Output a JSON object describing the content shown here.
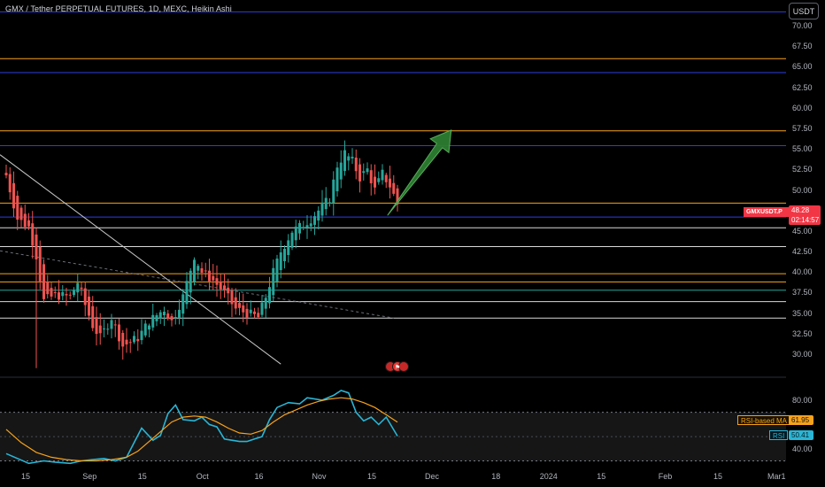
{
  "header": {
    "title": "GMX / Tether PERPETUAL FUTURES, 1D, MEXC, Heikin Ashi",
    "currency": "USDT"
  },
  "price_axis": {
    "ticks": [
      "70.00",
      "67.50",
      "65.00",
      "62.50",
      "60.00",
      "57.50",
      "55.00",
      "52.50",
      "50.00",
      "47.50",
      "45.00",
      "42.50",
      "40.00",
      "37.50",
      "35.00",
      "32.50",
      "30.00"
    ]
  },
  "rsi_axis": {
    "ticks": [
      "80.00",
      "40.00"
    ]
  },
  "time_axis": {
    "ticks": [
      {
        "label": "15",
        "day": 0
      },
      {
        "label": "Sep",
        "day": 17
      },
      {
        "label": "15",
        "day": 31
      },
      {
        "label": "Oct",
        "day": 47
      },
      {
        "label": "16",
        "day": 62
      },
      {
        "label": "Nov",
        "day": 78
      },
      {
        "label": "15",
        "day": 92
      },
      {
        "label": "Dec",
        "day": 108
      },
      {
        "label": "18",
        "day": 125
      },
      {
        "label": "2024",
        "day": 139
      },
      {
        "label": "15",
        "day": 153
      },
      {
        "label": "Feb",
        "day": 170
      },
      {
        "label": "15",
        "day": 184
      },
      {
        "label": "Mar",
        "day": 199
      },
      {
        "label": "1",
        "day": 214
      }
    ]
  },
  "badges": {
    "symbol": "GMXUSDT.P",
    "last_price": "48.28",
    "countdown": "02:14:57",
    "rsi_ma_label": "RSI-based MA",
    "rsi_ma_value": "61.95",
    "rsi_label": "RSI",
    "rsi_value": "50.41"
  },
  "colors": {
    "bull": "#26a69a",
    "bear": "#ef5350",
    "orange_level": "#f7a21b",
    "blue_level": "#2e3ee0",
    "white_level": "#d9d9d9",
    "teal_level": "#26a69a",
    "rsi_line": "#29b6d6",
    "rsi_ma_line": "#f7a21b",
    "arrow": "#2e7d32"
  },
  "chart_data": [
    {
      "type": "candlestick",
      "title": "GMX / Tether PERPETUAL FUTURES, 1D, MEXC, Heikin Ashi",
      "y_axis": "price (USDT)",
      "ylim": [
        27.2,
        72.6
      ],
      "x_axis": "days since Aug 15",
      "grid": false,
      "horizontal_levels": [
        {
          "price": 71.7,
          "color": "blue"
        },
        {
          "price": 66.0,
          "color": "orange"
        },
        {
          "price": 64.3,
          "color": "blue"
        },
        {
          "price": 57.2,
          "color": "orange"
        },
        {
          "price": 55.4,
          "color": "blue"
        },
        {
          "price": 48.4,
          "color": "orange"
        },
        {
          "price": 46.7,
          "color": "blue"
        },
        {
          "price": 45.4,
          "color": "white"
        },
        {
          "price": 43.1,
          "color": "white"
        },
        {
          "price": 39.8,
          "color": "orange"
        },
        {
          "price": 38.8,
          "color": "orange"
        },
        {
          "price": 37.8,
          "color": "teal"
        },
        {
          "price": 36.4,
          "color": "white"
        },
        {
          "price": 34.4,
          "color": "white"
        }
      ],
      "trendlines": [
        {
          "style": "solid",
          "from": {
            "day": 0,
            "price": 54.3
          },
          "to": {
            "day": 73,
            "price": 28.8
          }
        },
        {
          "style": "dashed",
          "from": {
            "day": 0,
            "price": 42.6
          },
          "to": {
            "day": 103,
            "price": 34.4
          }
        }
      ],
      "projection_arrow": {
        "from": {
          "day": 103,
          "price": 46.9
        },
        "to": {
          "day": 119,
          "price": 57.3
        }
      },
      "close_path": [
        {
          "day": 0,
          "close": 51.8
        },
        {
          "day": 3,
          "close": 46.5
        },
        {
          "day": 6,
          "close": 45.5
        },
        {
          "day": 8,
          "close": 42.0
        },
        {
          "day": 10,
          "close": 36.5
        },
        {
          "day": 13,
          "close": 37.2
        },
        {
          "day": 17,
          "close": 37.0
        },
        {
          "day": 19,
          "close": 38.8
        },
        {
          "day": 21,
          "close": 36.0
        },
        {
          "day": 23,
          "close": 33.5
        },
        {
          "day": 25,
          "close": 32.0
        },
        {
          "day": 28,
          "close": 34.5
        },
        {
          "day": 31,
          "close": 31.0
        },
        {
          "day": 35,
          "close": 32.0
        },
        {
          "day": 38,
          "close": 34.0
        },
        {
          "day": 42,
          "close": 35.5
        },
        {
          "day": 44,
          "close": 34.0
        },
        {
          "day": 47,
          "close": 37.0
        },
        {
          "day": 50,
          "close": 42.0
        },
        {
          "day": 52,
          "close": 40.0
        },
        {
          "day": 55,
          "close": 39.0
        },
        {
          "day": 58,
          "close": 37.5
        },
        {
          "day": 61,
          "close": 35.5
        },
        {
          "day": 64,
          "close": 35.0
        },
        {
          "day": 67,
          "close": 34.5
        },
        {
          "day": 69,
          "close": 37.0
        },
        {
          "day": 71,
          "close": 40.0
        },
        {
          "day": 73,
          "close": 42.5
        },
        {
          "day": 76,
          "close": 45.0
        },
        {
          "day": 78,
          "close": 45.5
        },
        {
          "day": 81,
          "close": 46.5
        },
        {
          "day": 84,
          "close": 48.0
        },
        {
          "day": 86,
          "close": 49.0
        },
        {
          "day": 88,
          "close": 53.0
        },
        {
          "day": 90,
          "close": 54.5
        },
        {
          "day": 92,
          "close": 53.5
        },
        {
          "day": 94,
          "close": 51.5
        },
        {
          "day": 96,
          "close": 52.5
        },
        {
          "day": 98,
          "close": 50.0
        },
        {
          "day": 100,
          "close": 52.0
        },
        {
          "day": 102,
          "close": 50.5
        },
        {
          "day": 104,
          "close": 48.3
        }
      ]
    },
    {
      "type": "line",
      "title": "RSI",
      "ylim": [
        26,
        96
      ],
      "x_axis": "days since Aug 15",
      "bands": [
        70,
        30
      ],
      "series": [
        {
          "name": "RSI",
          "values": [
            {
              "day": 0,
              "v": 36
            },
            {
              "day": 3,
              "v": 32
            },
            {
              "day": 6,
              "v": 28
            },
            {
              "day": 10,
              "v": 30
            },
            {
              "day": 13,
              "v": 29
            },
            {
              "day": 17,
              "v": 28
            },
            {
              "day": 20,
              "v": 30
            },
            {
              "day": 23,
              "v": 31
            },
            {
              "day": 26,
              "v": 32
            },
            {
              "day": 29,
              "v": 30
            },
            {
              "day": 32,
              "v": 33
            },
            {
              "day": 34,
              "v": 45
            },
            {
              "day": 36,
              "v": 57
            },
            {
              "day": 39,
              "v": 47
            },
            {
              "day": 41,
              "v": 51
            },
            {
              "day": 43,
              "v": 69
            },
            {
              "day": 45,
              "v": 76
            },
            {
              "day": 47,
              "v": 64
            },
            {
              "day": 50,
              "v": 63
            },
            {
              "day": 52,
              "v": 66
            },
            {
              "day": 54,
              "v": 60
            },
            {
              "day": 56,
              "v": 58
            },
            {
              "day": 58,
              "v": 48
            },
            {
              "day": 60,
              "v": 47
            },
            {
              "day": 62,
              "v": 46
            },
            {
              "day": 64,
              "v": 46
            },
            {
              "day": 66,
              "v": 48
            },
            {
              "day": 68,
              "v": 50
            },
            {
              "day": 70,
              "v": 64
            },
            {
              "day": 72,
              "v": 74
            },
            {
              "day": 75,
              "v": 78
            },
            {
              "day": 78,
              "v": 77
            },
            {
              "day": 80,
              "v": 82
            },
            {
              "day": 84,
              "v": 80
            },
            {
              "day": 87,
              "v": 84
            },
            {
              "day": 89,
              "v": 88
            },
            {
              "day": 91,
              "v": 86
            },
            {
              "day": 93,
              "v": 70
            },
            {
              "day": 95,
              "v": 63
            },
            {
              "day": 97,
              "v": 66
            },
            {
              "day": 99,
              "v": 60
            },
            {
              "day": 101,
              "v": 66
            },
            {
              "day": 104,
              "v": 50.41
            }
          ]
        },
        {
          "name": "RSI-based MA",
          "values": [
            {
              "day": 0,
              "v": 56
            },
            {
              "day": 4,
              "v": 45
            },
            {
              "day": 8,
              "v": 37
            },
            {
              "day": 12,
              "v": 33
            },
            {
              "day": 16,
              "v": 31
            },
            {
              "day": 20,
              "v": 30
            },
            {
              "day": 24,
              "v": 30
            },
            {
              "day": 28,
              "v": 31
            },
            {
              "day": 32,
              "v": 33
            },
            {
              "day": 35,
              "v": 38
            },
            {
              "day": 38,
              "v": 46
            },
            {
              "day": 41,
              "v": 54
            },
            {
              "day": 44,
              "v": 62
            },
            {
              "day": 47,
              "v": 66
            },
            {
              "day": 50,
              "v": 67
            },
            {
              "day": 53,
              "v": 66
            },
            {
              "day": 56,
              "v": 62
            },
            {
              "day": 59,
              "v": 57
            },
            {
              "day": 62,
              "v": 53
            },
            {
              "day": 65,
              "v": 52
            },
            {
              "day": 68,
              "v": 55
            },
            {
              "day": 71,
              "v": 62
            },
            {
              "day": 74,
              "v": 68
            },
            {
              "day": 77,
              "v": 72
            },
            {
              "day": 80,
              "v": 76
            },
            {
              "day": 83,
              "v": 79
            },
            {
              "day": 86,
              "v": 81
            },
            {
              "day": 89,
              "v": 82
            },
            {
              "day": 92,
              "v": 81
            },
            {
              "day": 95,
              "v": 78
            },
            {
              "day": 98,
              "v": 74
            },
            {
              "day": 101,
              "v": 68
            },
            {
              "day": 104,
              "v": 61.95
            }
          ]
        }
      ]
    }
  ]
}
